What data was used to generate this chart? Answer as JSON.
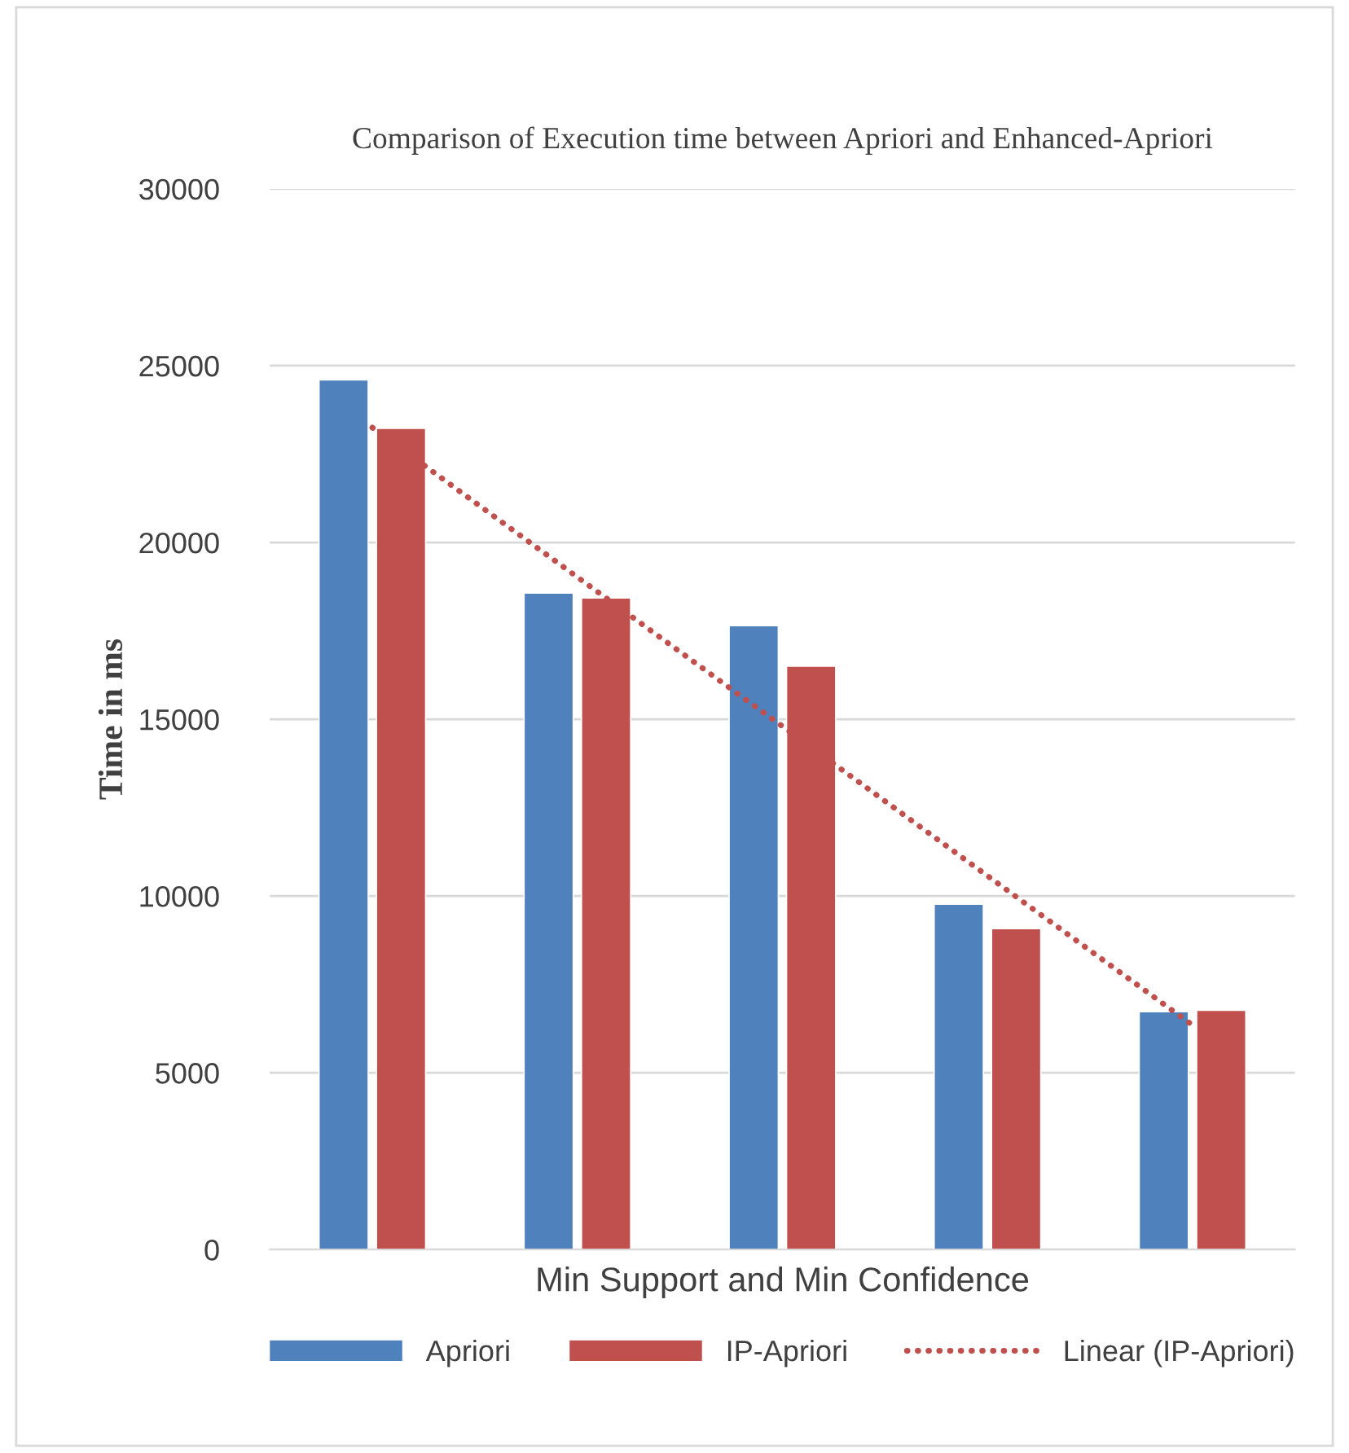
{
  "chart_data": {
    "type": "bar",
    "title": "Comparison of Execution time between Apriori and Enhanced-Apriori",
    "xlabel": "Min Support and Min Confidence",
    "ylabel": "Time in ms",
    "categories": [
      null,
      null,
      null,
      null,
      null
    ],
    "series": [
      {
        "name": "Apriori",
        "color": "#4f81bd",
        "values": [
          24600,
          18570,
          17650,
          9770,
          6730
        ]
      },
      {
        "name": "IP-Apriori",
        "color": "#c0504d",
        "values": [
          23230,
          18430,
          16500,
          9080,
          6770
        ]
      },
      {
        "name": "Linear (IP-Apriori)",
        "type": "line",
        "color": "#c0504d",
        "line_style": "dotted",
        "values": [
          23250,
          19020,
          14800,
          10570,
          6350
        ]
      }
    ],
    "ylim": [
      0,
      30000
    ],
    "yticks": [
      0,
      5000,
      10000,
      15000,
      20000,
      25000,
      30000
    ],
    "grid": "y",
    "legend": "bottom"
  }
}
